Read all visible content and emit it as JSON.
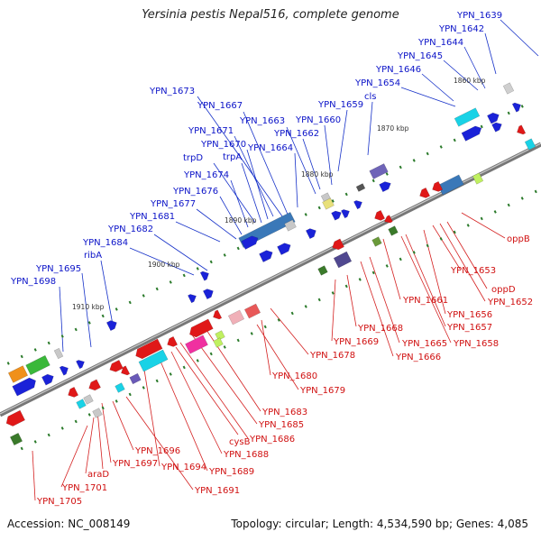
{
  "title": "Yersinia pestis Nepal516, complete genome",
  "accession": "Accession: NC_008149",
  "summary": "Topology: circular; Length: 4,534,590 bp; Genes: 4,085",
  "colors": {
    "plus_label": "#0b13c8",
    "minus_label": "#d01010",
    "backbone": "#7a7a7a"
  },
  "ticks": [
    "1860 kbp",
    "1870 kbp",
    "1880 kbp",
    "1890 kbp",
    "1900 kbp",
    "1910 kbp"
  ],
  "plus_labels": [
    "YPN_1639",
    "YPN_1642",
    "YPN_1644",
    "YPN_1645",
    "YPN_1646",
    "YPN_1654",
    "cls",
    "YPN_1659",
    "YPN_1660",
    "YPN_1662",
    "YPN_1663",
    "YPN_1664",
    "YPN_1667",
    "YPN_1673",
    "YPN_1671",
    "YPN_1670",
    "trpA",
    "trpD",
    "YPN_1674",
    "YPN_1676",
    "YPN_1677",
    "YPN_1681",
    "YPN_1682",
    "YPN_1684",
    "ribA",
    "YPN_1695",
    "YPN_1698"
  ],
  "minus_labels": [
    "oppB",
    "YPN_1653",
    "oppD",
    "YPN_1652",
    "YPN_1656",
    "YPN_1657",
    "YPN_1658",
    "YPN_1661",
    "YPN_1665",
    "YPN_1666",
    "YPN_1668",
    "YPN_1669",
    "YPN_1678",
    "YPN_1680",
    "YPN_1679",
    "YPN_1683",
    "YPN_1685",
    "YPN_1686",
    "cysB",
    "YPN_1688",
    "YPN_1689",
    "YPN_1694",
    "YPN_1691",
    "YPN_1696",
    "YPN_1697",
    "araD",
    "YPN_1701",
    "YPN_1705"
  ]
}
